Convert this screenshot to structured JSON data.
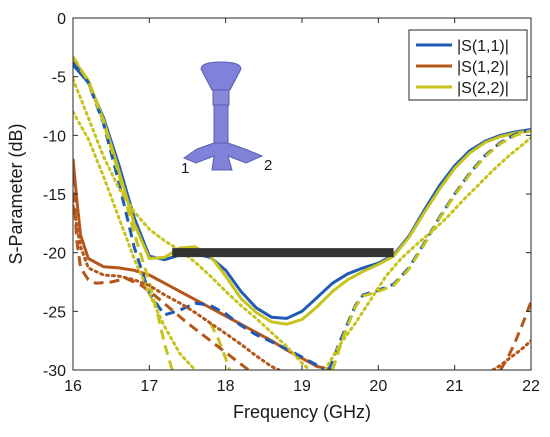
{
  "chart_data": {
    "type": "line",
    "xlabel": "Frequency (GHz)",
    "ylabel": "S-Parameter (dB)",
    "xlim": [
      16,
      22
    ],
    "ylim": [
      -30,
      0
    ],
    "xticks": [
      "16",
      "17",
      "18",
      "19",
      "20",
      "21",
      "22"
    ],
    "yticks": [
      "0",
      "-5",
      "-10",
      "-15",
      "-20",
      "-25",
      "-30"
    ],
    "grid": false,
    "legend": {
      "placement": "top-right",
      "entries": [
        "|S(1,1)|",
        "|S(1,2)|",
        "|S(2,2)|"
      ]
    },
    "series": [
      {
        "name": "|S(1,1)|",
        "style": "solid",
        "color": "#1f5bb5",
        "x": [
          16.0,
          16.2,
          16.4,
          16.6,
          16.8,
          17.0,
          17.2,
          17.4,
          17.6,
          17.8,
          18.0,
          18.2,
          18.4,
          18.6,
          18.8,
          19.0,
          19.2,
          19.4,
          19.6,
          19.8,
          20.0,
          20.2,
          20.4,
          20.6,
          20.8,
          21.0,
          21.2,
          21.4,
          21.6,
          21.8,
          22.0
        ],
        "y": [
          -4.0,
          -5.5,
          -8.5,
          -12.5,
          -17.0,
          -20.3,
          -20.6,
          -20.2,
          -20.1,
          -20.4,
          -21.5,
          -23.3,
          -24.7,
          -25.5,
          -25.6,
          -25.0,
          -23.8,
          -22.6,
          -21.8,
          -21.3,
          -20.9,
          -20.2,
          -18.6,
          -16.4,
          -14.3,
          -12.6,
          -11.3,
          -10.5,
          -10.0,
          -9.7,
          -9.5
        ]
      },
      {
        "name": "|S(1,2)|",
        "style": "solid",
        "color": "#b5561a",
        "x": [
          16.0,
          16.05,
          16.1,
          16.2,
          16.4,
          16.6,
          16.8,
          17.0,
          17.2,
          17.4,
          17.6,
          17.8,
          18.0,
          18.2,
          18.4,
          18.6,
          18.8,
          19.0,
          19.2,
          19.4
        ],
        "y": [
          -12.0,
          -15.5,
          -18.5,
          -20.5,
          -21.2,
          -21.3,
          -21.5,
          -21.9,
          -22.6,
          -23.3,
          -24.0,
          -24.7,
          -25.4,
          -26.1,
          -26.8,
          -27.5,
          -28.3,
          -29.0,
          -29.7,
          -30.0
        ]
      },
      {
        "name": "|S(2,2)|",
        "style": "solid",
        "color": "#c8c21c",
        "x": [
          16.0,
          16.2,
          16.4,
          16.6,
          16.8,
          17.0,
          17.2,
          17.4,
          17.6,
          17.8,
          18.0,
          18.2,
          18.4,
          18.6,
          18.8,
          19.0,
          19.2,
          19.4,
          19.6,
          19.8,
          20.0,
          20.2,
          20.4,
          20.6,
          20.8,
          21.0,
          21.2,
          21.4,
          21.6,
          21.8,
          22.0
        ],
        "y": [
          -3.5,
          -5.3,
          -8.7,
          -13.0,
          -17.5,
          -20.5,
          -20.4,
          -19.6,
          -19.5,
          -20.3,
          -22.0,
          -23.9,
          -25.1,
          -25.9,
          -26.1,
          -25.7,
          -24.6,
          -23.3,
          -22.3,
          -21.6,
          -21.0,
          -20.3,
          -18.7,
          -16.6,
          -14.6,
          -12.8,
          -11.5,
          -10.6,
          -10.1,
          -9.8,
          -9.6
        ]
      },
      {
        "name": "",
        "style": "dashed",
        "color": "#1f5bb5",
        "x": [
          16.0,
          16.2,
          16.4,
          16.6,
          16.8,
          17.0,
          17.2,
          17.4,
          17.6,
          17.8,
          18.0,
          18.2,
          18.4,
          18.6,
          18.8,
          19.0,
          19.2,
          19.3
        ],
        "y": [
          -3.8,
          -5.5,
          -9.0,
          -14.0,
          -19.5,
          -23.5,
          -25.3,
          -24.9,
          -24.3,
          -24.5,
          -25.2,
          -26.2,
          -27.0,
          -27.6,
          -28.2,
          -28.9,
          -29.6,
          -30.0
        ]
      },
      {
        "name": "",
        "style": "dashed",
        "color": "#1f5bb5",
        "x": [
          19.35,
          19.5,
          19.7,
          19.8,
          20.0,
          20.2,
          20.4,
          20.6,
          20.8,
          21.0,
          21.2,
          21.4,
          21.6,
          21.8,
          22.0
        ],
        "y": [
          -30.0,
          -27.5,
          -24.5,
          -23.6,
          -23.2,
          -22.7,
          -21.3,
          -19.2,
          -17.0,
          -15.0,
          -13.2,
          -11.7,
          -10.6,
          -9.9,
          -9.5
        ]
      },
      {
        "name": "",
        "style": "dashed",
        "color": "#c8c21c",
        "x": [
          16.0,
          16.2,
          16.4,
          16.6,
          16.8,
          17.0,
          17.1,
          17.2,
          17.3
        ],
        "y": [
          -3.3,
          -5.4,
          -8.9,
          -13.3,
          -18.3,
          -22.5,
          -25.0,
          -27.8,
          -30.0
        ]
      },
      {
        "name": "",
        "style": "dashed",
        "color": "#c8c21c",
        "x": [
          17.8,
          17.9,
          18.0,
          18.05
        ],
        "y": [
          -26.0,
          -27.3,
          -29.0,
          -30.0
        ]
      },
      {
        "name": "",
        "style": "dashed",
        "color": "#c8c21c",
        "x": [
          19.4,
          19.55,
          19.7,
          19.8,
          20.0,
          20.2,
          20.4,
          20.6,
          20.8,
          21.0,
          21.2,
          21.4,
          21.6,
          21.8,
          22.0
        ],
        "y": [
          -30.0,
          -27.0,
          -24.6,
          -23.7,
          -23.3,
          -22.8,
          -21.4,
          -19.3,
          -17.1,
          -15.1,
          -13.3,
          -11.8,
          -10.7,
          -10.0,
          -9.6
        ]
      },
      {
        "name": "",
        "style": "dashed",
        "color": "#b5561a",
        "x": [
          16.0,
          16.05,
          16.1,
          16.2,
          16.3,
          16.5,
          16.7,
          16.9,
          17.1,
          17.3,
          17.5,
          17.7,
          17.9,
          18.1,
          18.3
        ],
        "y": [
          -13.5,
          -19.0,
          -21.3,
          -22.3,
          -22.6,
          -22.5,
          -22.2,
          -22.8,
          -23.8,
          -24.9,
          -26.0,
          -27.0,
          -28.0,
          -29.0,
          -30.0
        ]
      },
      {
        "name": "",
        "style": "dashed",
        "color": "#b5561a",
        "x": [
          21.6,
          21.7,
          21.8,
          21.9,
          22.0
        ],
        "y": [
          -30.0,
          -28.9,
          -27.5,
          -25.9,
          -24.2
        ]
      },
      {
        "name": "",
        "style": "dotted",
        "color": "#c8c21c",
        "x": [
          16.0,
          16.2,
          16.4,
          16.6,
          16.8,
          17.0,
          17.2,
          17.4,
          17.6,
          17.8,
          18.0,
          18.2,
          18.4,
          18.6,
          18.8,
          19.0,
          19.1
        ],
        "y": [
          -5.2,
          -8.5,
          -11.8,
          -14.5,
          -16.5,
          -18.0,
          -19.0,
          -19.8,
          -20.8,
          -22.0,
          -23.3,
          -24.5,
          -25.6,
          -26.8,
          -28.0,
          -29.4,
          -30.0
        ]
      },
      {
        "name": "",
        "style": "dotted",
        "color": "#c8c21c",
        "x": [
          16.0,
          16.2,
          16.4,
          16.6,
          16.8,
          17.0,
          17.2,
          17.4,
          17.6
        ],
        "y": [
          -8.0,
          -10.3,
          -13.5,
          -17.0,
          -20.5,
          -23.5,
          -26.3,
          -28.6,
          -30.0
        ]
      },
      {
        "name": "",
        "style": "dotted",
        "color": "#c8c21c",
        "x": [
          19.3,
          19.5,
          19.7,
          19.9,
          20.1,
          20.3,
          20.5,
          20.7,
          20.9,
          21.1,
          21.3,
          21.5,
          21.7,
          22.0
        ],
        "y": [
          -30.0,
          -27.8,
          -26.0,
          -24.0,
          -22.0,
          -20.5,
          -19.3,
          -18.2,
          -17.0,
          -15.6,
          -14.3,
          -13.0,
          -11.8,
          -10.2
        ]
      },
      {
        "name": "",
        "style": "dotted",
        "color": "#b5561a",
        "x": [
          16.0,
          16.1,
          16.2,
          16.4,
          16.6,
          16.8,
          17.0,
          17.2,
          17.4,
          17.6,
          17.8,
          18.0,
          18.2,
          18.4,
          18.6,
          18.7
        ],
        "y": [
          -16.0,
          -19.5,
          -21.3,
          -21.9,
          -22.0,
          -22.3,
          -22.8,
          -23.6,
          -24.3,
          -25.1,
          -26.0,
          -26.9,
          -27.8,
          -28.8,
          -29.7,
          -30.0
        ]
      },
      {
        "name": "",
        "style": "dotted",
        "color": "#b5561a",
        "x": [
          21.5,
          21.6,
          21.7,
          21.8,
          21.9,
          22.0
        ],
        "y": [
          -30.0,
          -29.6,
          -29.1,
          -28.6,
          -28.1,
          -27.5
        ]
      }
    ],
    "annotations": {
      "bandwidth_bar": {
        "x": [
          17.3,
          20.2
        ],
        "y": -20,
        "color": "#333333"
      },
      "inset_port_labels": [
        "1",
        "2"
      ],
      "inset_color": "#7f82d8"
    }
  }
}
